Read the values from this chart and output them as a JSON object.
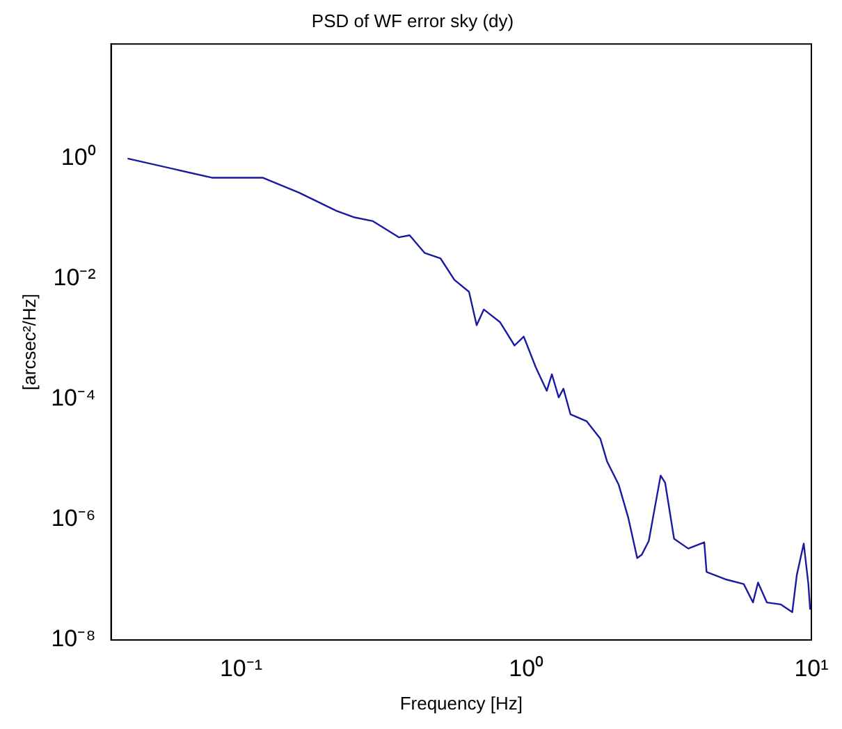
{
  "chart_data": {
    "type": "line",
    "title": "PSD of WF error sky (dy)",
    "xlabel": "Frequency [Hz]",
    "ylabel": "[arcsec²/Hz]",
    "log": "xy",
    "grid": false,
    "legend": false,
    "marker": "none",
    "line_style": "solid",
    "xlim": [
      0.035,
      10
    ],
    "ylim": [
      1e-08,
      80
    ],
    "xticks": [
      {
        "value": 0.1,
        "label": "10⁻¹"
      },
      {
        "value": 1,
        "label": "10⁰"
      },
      {
        "value": 10,
        "label": "10¹"
      }
    ],
    "yticks": [
      {
        "value": 1e-08,
        "label": "10⁻⁸"
      },
      {
        "value": 1e-06,
        "label": "10⁻⁶"
      },
      {
        "value": 0.0001,
        "label": "10⁻⁴"
      },
      {
        "value": 0.01,
        "label": "10⁻²"
      },
      {
        "value": 1,
        "label": "10⁰"
      }
    ],
    "series": [
      {
        "color": "#1a1aa0",
        "x": [
          0.04,
          0.079,
          0.119,
          0.16,
          0.216,
          0.25,
          0.29,
          0.358,
          0.39,
          0.44,
          0.5,
          0.56,
          0.63,
          0.67,
          0.71,
          0.81,
          0.91,
          0.98,
          1.08,
          1.18,
          1.23,
          1.3,
          1.35,
          1.43,
          1.63,
          1.82,
          1.92,
          2.11,
          2.28,
          2.45,
          2.54,
          2.69,
          2.96,
          3.07,
          3.3,
          3.7,
          4.21,
          4.29,
          4.99,
          5.79,
          6.24,
          6.5,
          6.98,
          7.8,
          8.57,
          8.89,
          9.4,
          9.76,
          9.9
        ],
        "values": [
          1.0,
          0.48,
          0.48,
          0.27,
          0.135,
          0.105,
          0.091,
          0.049,
          0.053,
          0.027,
          0.022,
          0.0096,
          0.0061,
          0.0017,
          0.0031,
          0.0019,
          0.00078,
          0.0011,
          0.00034,
          0.000138,
          0.00026,
          0.000107,
          0.00015,
          5.6e-05,
          4.3e-05,
          2.2e-05,
          9.3e-06,
          3.8e-06,
          1.07e-06,
          2.3e-07,
          2.6e-07,
          4.4e-07,
          5.4e-06,
          4.1e-06,
          4.8e-07,
          3.3e-07,
          4.2e-07,
          1.35e-07,
          1.02e-07,
          8.5e-08,
          4.2e-08,
          9e-08,
          4.2e-08,
          3.9e-08,
          2.9e-08,
          1.2e-07,
          4e-07,
          8.5e-08,
          3.2e-08
        ]
      }
    ]
  }
}
